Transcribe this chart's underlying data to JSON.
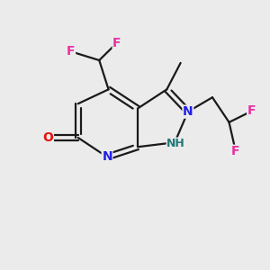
{
  "background_color": "#ebebeb",
  "bond_color": "#1a1a1a",
  "atom_colors": {
    "F": "#e832a0",
    "N": "#2020e8",
    "O": "#e81010",
    "H": "#207878",
    "C": "#1a1a1a"
  },
  "figsize": [
    3.0,
    3.0
  ],
  "dpi": 100,
  "lw": 1.6
}
